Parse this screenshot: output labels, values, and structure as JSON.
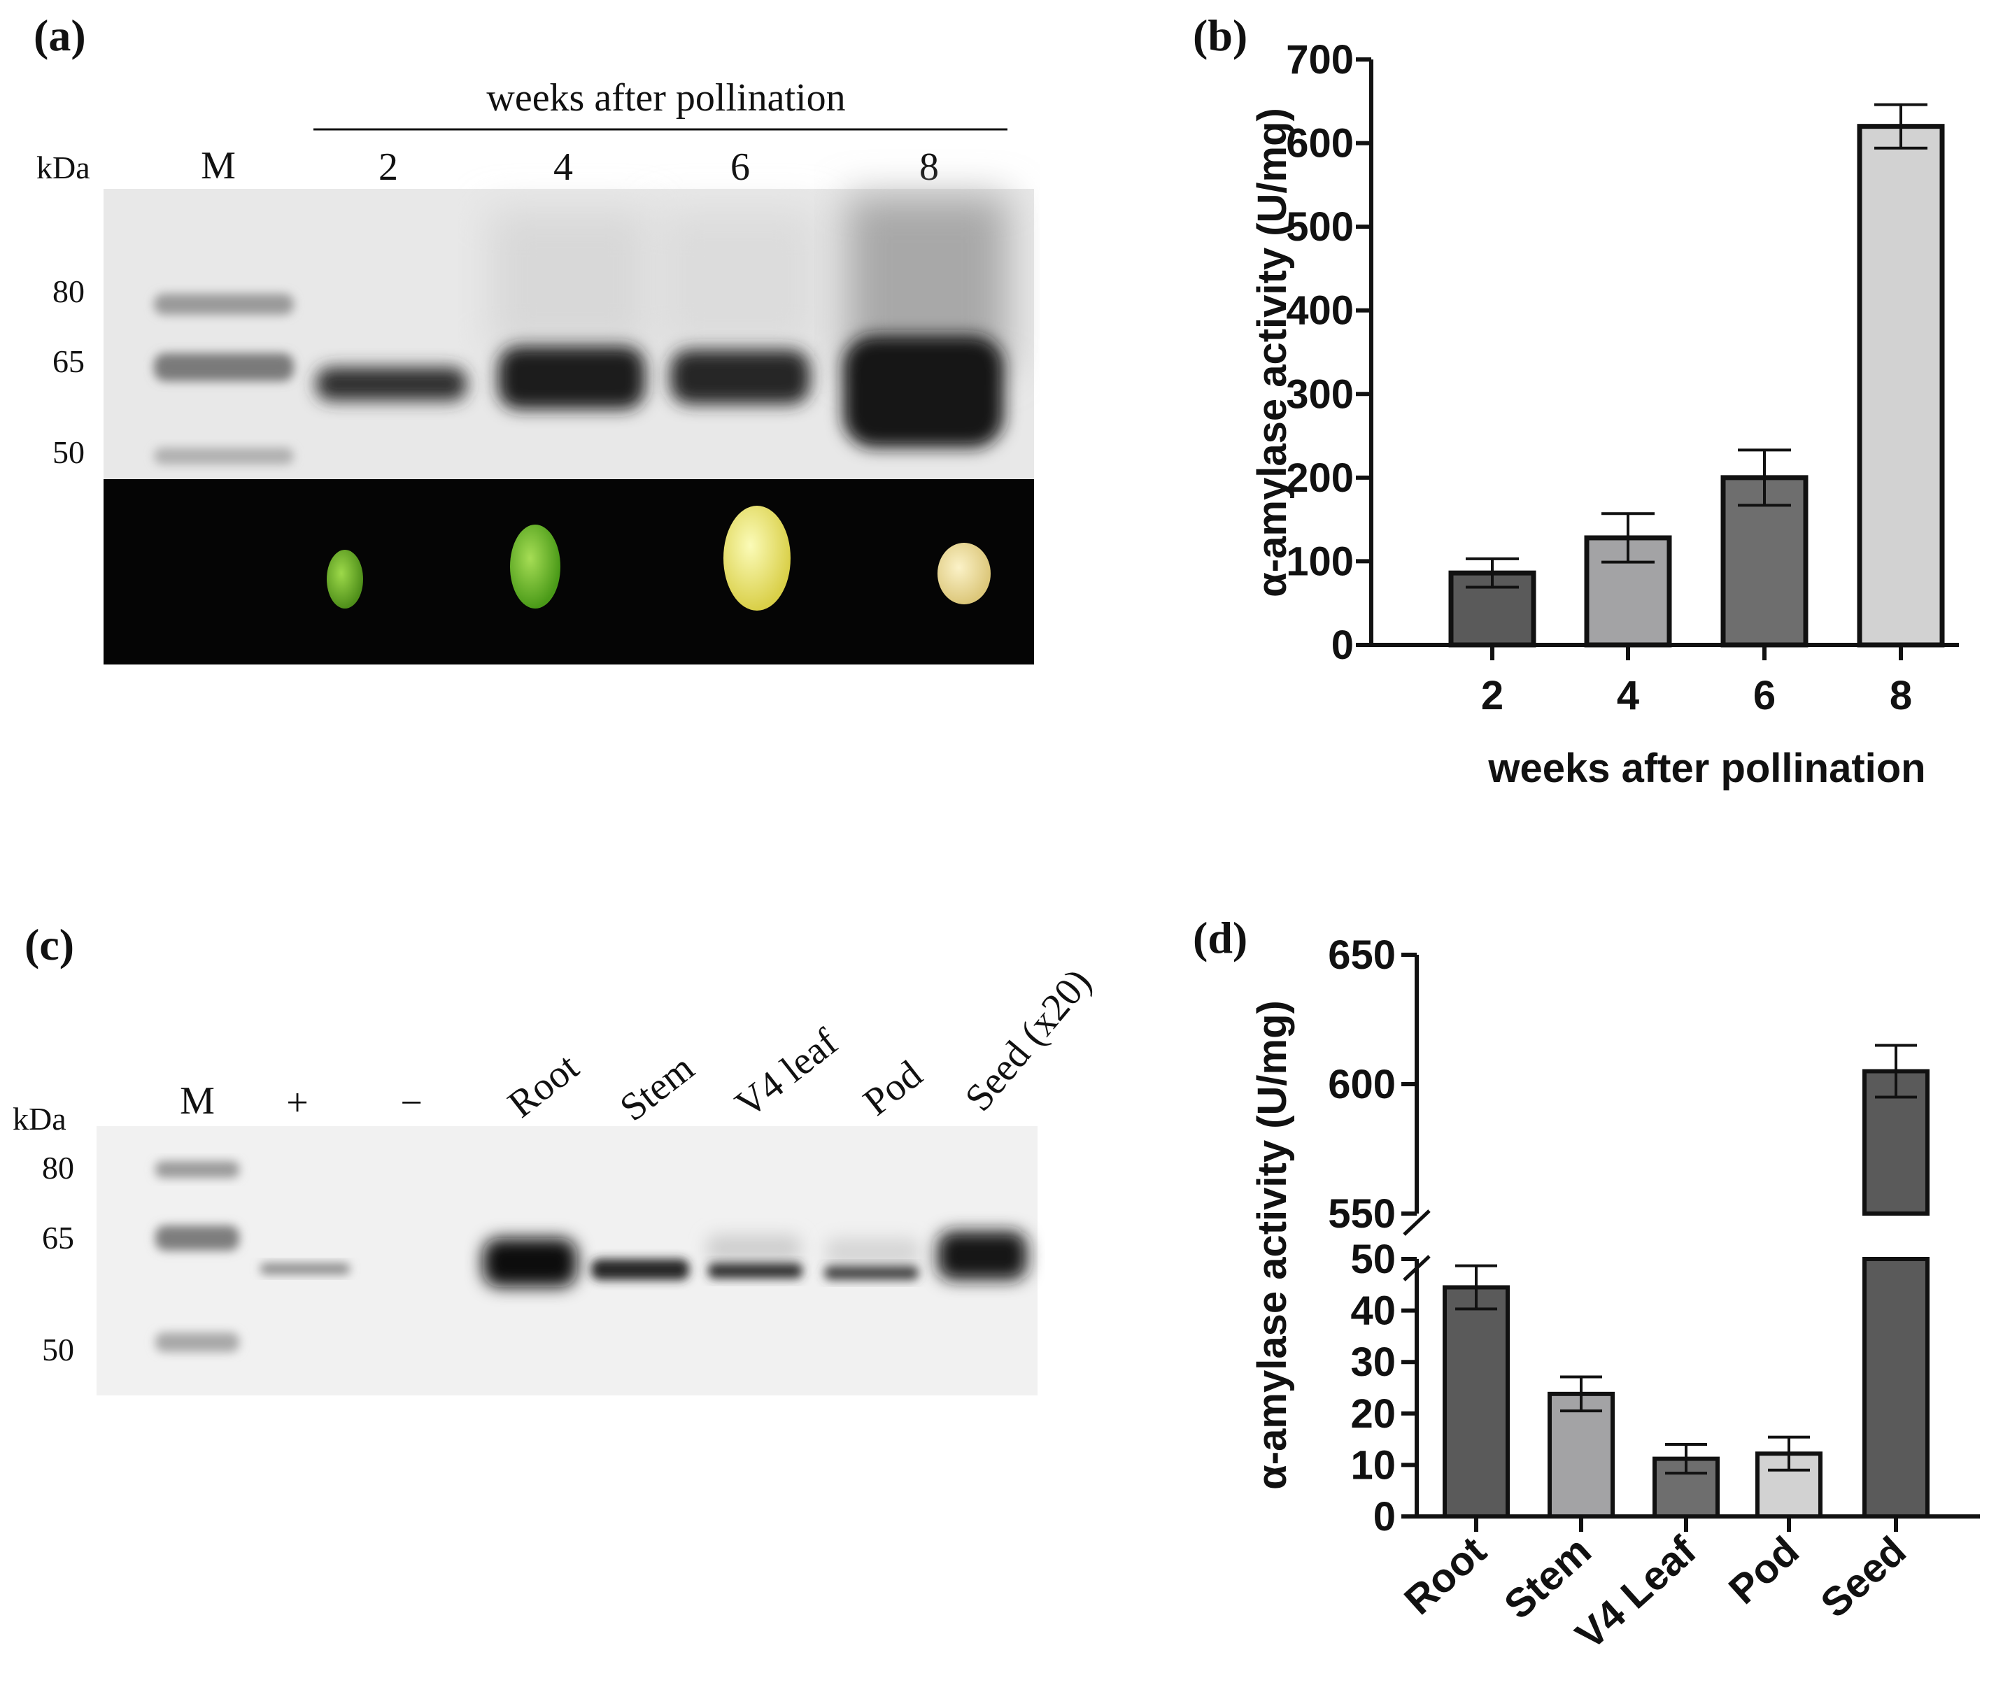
{
  "figure": {
    "panel_a": {
      "label": "(a)",
      "header": "weeks after pollination",
      "unit_label": "kDa",
      "marker_label": "M",
      "lane_labels": [
        "2",
        "4",
        "6",
        "8"
      ],
      "mw_labels": [
        "80",
        "65",
        "50"
      ]
    },
    "panel_c": {
      "label": "(c)",
      "unit_label": "kDa",
      "lane_labels": [
        "M",
        "+",
        "−",
        "Root",
        "Stem",
        "V4 leaf",
        "Pod",
        "Seed (x20)"
      ],
      "mw_labels": [
        "80",
        "65",
        "50"
      ]
    },
    "panel_b_label": "(b)",
    "panel_d_label": "(d)"
  },
  "chart_data": [
    {
      "type": "bar",
      "panel": "(b)",
      "categories": [
        "2",
        "4",
        "6",
        "8"
      ],
      "values": [
        86,
        128,
        200,
        620
      ],
      "errors": [
        17,
        29,
        33,
        26
      ],
      "bar_colors": [
        "#5a5a5a",
        "#a3a3a5",
        "#6e6e6e",
        "#d2d2d2"
      ],
      "xlabel": "weeks after pollination",
      "ylabel": "α-amylase activity (U/mg)",
      "ylim": [
        0,
        700
      ],
      "yticks": [
        0,
        100,
        200,
        300,
        400,
        500,
        600,
        700
      ]
    },
    {
      "type": "bar",
      "panel": "(d)",
      "categories": [
        "Root",
        "Stem",
        "V4 Leaf",
        "Pod",
        "Seed"
      ],
      "values": [
        44.5,
        23.8,
        11.2,
        12.2,
        605
      ],
      "errors": [
        4.2,
        3.3,
        2.8,
        3.2,
        10
      ],
      "bar_colors": [
        "#5a5a5a",
        "#a3a3a5",
        "#6e6e6e",
        "#d2d2d2",
        "#5a5a5a"
      ],
      "xlabel": "",
      "ylabel": "α-amylase activity (U/mg)",
      "axis_break": {
        "lower_range": [
          0,
          50
        ],
        "upper_range": [
          550,
          650
        ]
      },
      "yticks_lower": [
        0,
        10,
        20,
        30,
        40,
        50
      ],
      "yticks_upper": [
        550,
        600,
        650
      ]
    }
  ]
}
